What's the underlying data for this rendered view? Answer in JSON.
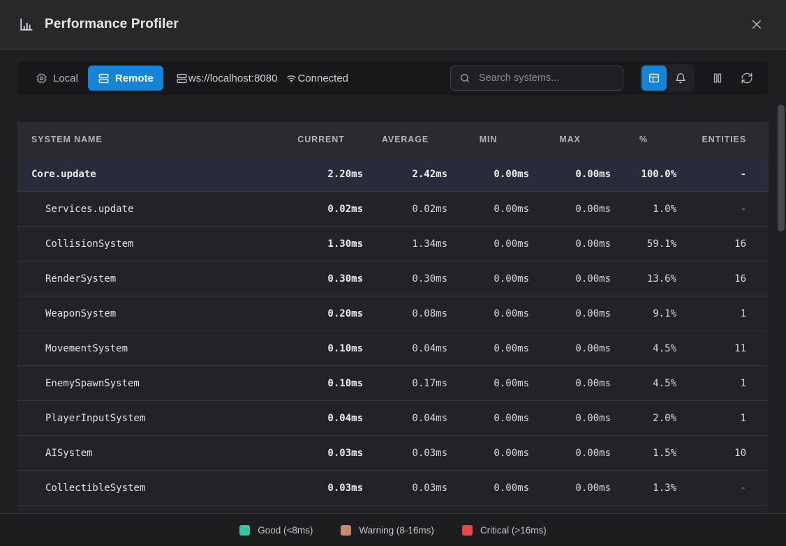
{
  "window": {
    "title": "Performance Profiler"
  },
  "toolbar": {
    "local_label": "Local",
    "remote_label": "Remote",
    "ws_url": "ws://localhost:8080",
    "connection_status": "Connected",
    "search_placeholder": "Search systems...",
    "icons": [
      "cpu-chip-icon",
      "server-icon",
      "wifi-icon",
      "search-icon",
      "table-view-icon",
      "bell-icon",
      "pause-icon",
      "refresh-icon"
    ],
    "accent_color": "#1583d6"
  },
  "table": {
    "columns": [
      "SYSTEM NAME",
      "CURRENT",
      "AVERAGE",
      "MIN",
      "MAX",
      "%",
      "ENTITIES"
    ],
    "rows": [
      {
        "name": "Core.update",
        "indent": 0,
        "bold": true,
        "highlight": true,
        "current": "2.20ms",
        "average": "2.42ms",
        "min": "0.00ms",
        "max": "0.00ms",
        "percent": "100.0%",
        "entities": "-"
      },
      {
        "name": "Services.update",
        "indent": 1,
        "bold": false,
        "highlight": false,
        "current": "0.02ms",
        "average": "0.02ms",
        "min": "0.00ms",
        "max": "0.00ms",
        "percent": "1.0%",
        "entities": "-"
      },
      {
        "name": "CollisionSystem",
        "indent": 1,
        "bold": false,
        "highlight": false,
        "current": "1.30ms",
        "average": "1.34ms",
        "min": "0.00ms",
        "max": "0.00ms",
        "percent": "59.1%",
        "entities": "16"
      },
      {
        "name": "RenderSystem",
        "indent": 1,
        "bold": false,
        "highlight": false,
        "current": "0.30ms",
        "average": "0.30ms",
        "min": "0.00ms",
        "max": "0.00ms",
        "percent": "13.6%",
        "entities": "16"
      },
      {
        "name": "WeaponSystem",
        "indent": 1,
        "bold": false,
        "highlight": false,
        "current": "0.20ms",
        "average": "0.08ms",
        "min": "0.00ms",
        "max": "0.00ms",
        "percent": "9.1%",
        "entities": "1"
      },
      {
        "name": "MovementSystem",
        "indent": 1,
        "bold": false,
        "highlight": false,
        "current": "0.10ms",
        "average": "0.04ms",
        "min": "0.00ms",
        "max": "0.00ms",
        "percent": "4.5%",
        "entities": "11"
      },
      {
        "name": "EnemySpawnSystem",
        "indent": 1,
        "bold": false,
        "highlight": false,
        "current": "0.10ms",
        "average": "0.17ms",
        "min": "0.00ms",
        "max": "0.00ms",
        "percent": "4.5%",
        "entities": "1"
      },
      {
        "name": "PlayerInputSystem",
        "indent": 1,
        "bold": false,
        "highlight": false,
        "current": "0.04ms",
        "average": "0.04ms",
        "min": "0.00ms",
        "max": "0.00ms",
        "percent": "2.0%",
        "entities": "1"
      },
      {
        "name": "AISystem",
        "indent": 1,
        "bold": false,
        "highlight": false,
        "current": "0.03ms",
        "average": "0.03ms",
        "min": "0.00ms",
        "max": "0.00ms",
        "percent": "1.5%",
        "entities": "10"
      },
      {
        "name": "CollectibleSystem",
        "indent": 1,
        "bold": false,
        "highlight": false,
        "current": "0.03ms",
        "average": "0.03ms",
        "min": "0.00ms",
        "max": "0.00ms",
        "percent": "1.3%",
        "entities": "-"
      }
    ]
  },
  "legend": {
    "items": [
      {
        "label": "Good (<8ms)",
        "color": "#35c7a4"
      },
      {
        "label": "Warning (8-16ms)",
        "color": "#cc8a6b"
      },
      {
        "label": "Critical (>16ms)",
        "color": "#ea4848"
      }
    ]
  }
}
